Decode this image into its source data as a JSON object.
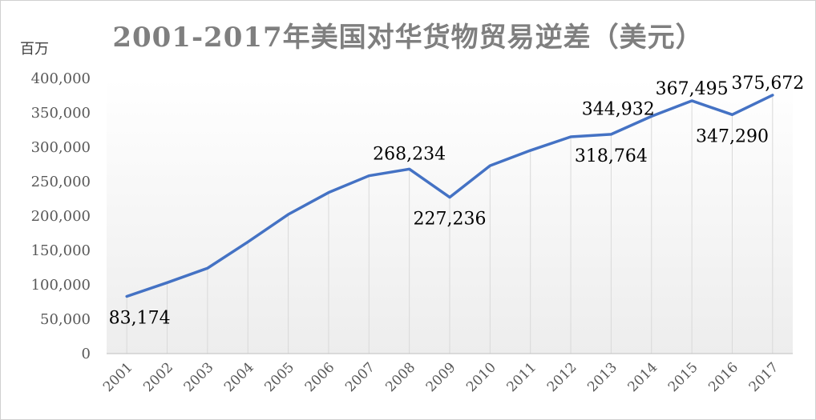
{
  "chart_data": {
    "type": "line",
    "title": "2001-2017年美国对华货物贸易逆差（美元）",
    "unit_label": "百万",
    "x": [
      "2001",
      "2002",
      "2003",
      "2004",
      "2005",
      "2006",
      "2007",
      "2008",
      "2009",
      "2010",
      "2011",
      "2012",
      "2013",
      "2014",
      "2015",
      "2016",
      "2017"
    ],
    "series": [
      {
        "values": [
          83174,
          103100,
          124100,
          162300,
          202300,
          234100,
          258500,
          268234,
          227236,
          273100,
          295300,
          315100,
          318764,
          344932,
          367495,
          347290,
          375672
        ],
        "color": "#4472c4"
      }
    ],
    "y_ticks": [
      "0",
      "50,000",
      "100,000",
      "150,000",
      "200,000",
      "250,000",
      "300,000",
      "350,000",
      "400,000"
    ],
    "ylim": [
      0,
      400000
    ],
    "y_step": 50000,
    "grid": "vertical",
    "legend": "none",
    "data_labels": [
      {
        "index": 0,
        "text": "83,174",
        "position": "below"
      },
      {
        "index": 7,
        "text": "268,234",
        "position": "above"
      },
      {
        "index": 8,
        "text": "227,236",
        "position": "below"
      },
      {
        "index": 12,
        "text": "318,764",
        "position": "below"
      },
      {
        "index": 13,
        "text": "344,932",
        "position": "left"
      },
      {
        "index": 14,
        "text": "367,495",
        "position": "above"
      },
      {
        "index": 15,
        "text": "347,290",
        "position": "below"
      },
      {
        "index": 16,
        "text": "375,672",
        "position": "above"
      }
    ]
  }
}
